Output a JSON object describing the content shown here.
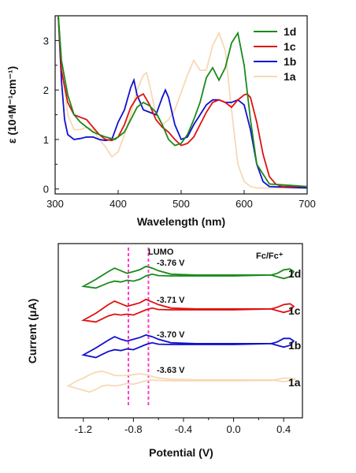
{
  "colors": {
    "1a": "#f7d9b4",
    "1b": "#1010d0",
    "1c": "#e01010",
    "1d": "#1a8a1a",
    "marker": "#ff3cc8"
  },
  "chart_data": [
    {
      "type": "line",
      "xlabel": "Wavelength (nm)",
      "ylabel": "ε (10⁴M⁻¹cm⁻¹)",
      "xlim": [
        300,
        700
      ],
      "ylim": [
        -0.1,
        3.5
      ],
      "xticks": [
        "300",
        "400",
        "500",
        "600",
        "700"
      ],
      "yticks": [
        "0",
        "1",
        "2",
        "3"
      ],
      "legend_position": "top-right",
      "series": [
        {
          "name": "1d",
          "color_key": "1d",
          "x": [
            305,
            310,
            320,
            330,
            340,
            360,
            380,
            395,
            410,
            420,
            430,
            440,
            450,
            460,
            470,
            480,
            490,
            500,
            510,
            520,
            530,
            540,
            550,
            560,
            570,
            580,
            590,
            600,
            610,
            620,
            640,
            700
          ],
          "values": [
            3.5,
            2.6,
            1.9,
            1.5,
            1.35,
            1.15,
            1.05,
            1.0,
            1.15,
            1.4,
            1.65,
            1.75,
            1.68,
            1.55,
            1.3,
            1.0,
            0.88,
            0.92,
            1.1,
            1.4,
            1.75,
            2.25,
            2.45,
            2.2,
            2.45,
            2.95,
            3.15,
            2.5,
            1.4,
            0.5,
            0.1,
            0.05
          ]
        },
        {
          "name": "1c",
          "color_key": "1c",
          "x": [
            305,
            310,
            320,
            330,
            340,
            350,
            360,
            370,
            380,
            390,
            400,
            410,
            420,
            430,
            440,
            450,
            460,
            470,
            480,
            490,
            500,
            510,
            520,
            530,
            540,
            550,
            560,
            570,
            580,
            590,
            600,
            605,
            610,
            620,
            630,
            640,
            650,
            660,
            700
          ],
          "values": [
            3.5,
            2.4,
            1.75,
            1.5,
            1.45,
            1.4,
            1.25,
            1.1,
            1.0,
            0.98,
            1.05,
            1.3,
            1.65,
            1.85,
            1.92,
            1.7,
            1.4,
            1.25,
            1.15,
            1.0,
            0.88,
            0.92,
            1.05,
            1.3,
            1.55,
            1.75,
            1.8,
            1.75,
            1.65,
            1.8,
            1.9,
            1.92,
            1.85,
            1.35,
            0.7,
            0.25,
            0.1,
            0.05,
            0.05
          ]
        },
        {
          "name": "1b",
          "color_key": "1b",
          "x": [
            305,
            310,
            315,
            320,
            330,
            340,
            350,
            360,
            370,
            380,
            390,
            400,
            410,
            420,
            425,
            430,
            440,
            450,
            460,
            470,
            475,
            480,
            490,
            500,
            510,
            520,
            530,
            540,
            550,
            560,
            570,
            580,
            590,
            600,
            610,
            620,
            630,
            640,
            700
          ],
          "values": [
            3.5,
            2.2,
            1.4,
            1.1,
            1.0,
            1.02,
            1.05,
            1.05,
            1.0,
            0.98,
            1.0,
            1.35,
            1.6,
            2.05,
            2.2,
            1.9,
            1.6,
            1.55,
            1.5,
            1.85,
            2.0,
            1.85,
            1.3,
            1.0,
            1.05,
            1.3,
            1.5,
            1.7,
            1.8,
            1.8,
            1.75,
            1.75,
            1.8,
            1.7,
            1.2,
            0.5,
            0.15,
            0.05,
            0.02
          ]
        },
        {
          "name": "1a",
          "color_key": "1a",
          "x": [
            305,
            310,
            320,
            330,
            340,
            350,
            360,
            370,
            380,
            390,
            400,
            410,
            420,
            430,
            440,
            445,
            450,
            460,
            470,
            480,
            490,
            500,
            510,
            520,
            530,
            540,
            550,
            560,
            570,
            580,
            590,
            600,
            610,
            620,
            630,
            700
          ],
          "values": [
            3.5,
            2.5,
            1.5,
            1.2,
            1.2,
            1.25,
            1.2,
            1.0,
            0.85,
            0.65,
            0.75,
            1.1,
            1.5,
            2.0,
            2.3,
            2.35,
            2.1,
            1.5,
            1.3,
            1.4,
            1.6,
            1.95,
            2.3,
            2.6,
            2.4,
            2.4,
            2.9,
            3.15,
            2.8,
            1.6,
            0.5,
            0.15,
            0.05,
            0.02,
            0.02,
            0.02
          ]
        }
      ]
    },
    {
      "type": "line",
      "xlabel": "Potential (V)",
      "ylabel": "Current (μA)",
      "xlim": [
        -1.4,
        0.55
      ],
      "xticks": [
        "-1.2",
        "-0.8",
        "-0.4",
        "0.0",
        "0.4"
      ],
      "markers": [
        -0.84,
        -0.68
      ],
      "annotations": [
        "LUMO",
        "-3.76 V",
        "-3.71 V",
        "-3.70 V",
        "-3.63 V",
        "Fc/Fc+"
      ],
      "series": [
        {
          "name": "1d",
          "color_key": "1d",
          "baseline": 0,
          "x": [
            -1.2,
            -1.1,
            -1.0,
            -0.95,
            -0.9,
            -0.85,
            -0.8,
            -0.75,
            -0.7,
            -0.65,
            -0.6,
            -0.5,
            -0.3,
            0,
            0.3,
            0.35,
            0.4,
            0.45,
            0.48
          ],
          "forward": [
            -0.6,
            -0.7,
            -0.4,
            -0.3,
            -0.35,
            -0.25,
            -0.3,
            -0.2,
            0,
            0.1,
            0.02,
            0,
            0,
            0,
            0.05,
            0.15,
            0.35,
            0.4,
            0.25
          ],
          "reverse": [
            -0.6,
            -0.2,
            0.25,
            0.45,
            0.3,
            0.15,
            0.25,
            0.35,
            0.55,
            0.45,
            0.3,
            0.1,
            0.05,
            0.05,
            0.05,
            -0.05,
            -0.15,
            -0.05,
            0.25
          ]
        },
        {
          "name": "1c",
          "color_key": "1c",
          "baseline": 0,
          "x": [
            -1.2,
            -1.1,
            -1.0,
            -0.95,
            -0.9,
            -0.85,
            -0.8,
            -0.75,
            -0.7,
            -0.65,
            -0.6,
            -0.5,
            -0.3,
            0,
            0.3,
            0.35,
            0.4,
            0.45,
            0.48
          ],
          "forward": [
            -0.6,
            -0.7,
            -0.35,
            -0.25,
            -0.3,
            -0.25,
            -0.3,
            -0.15,
            0,
            0.1,
            0.02,
            0,
            0,
            0,
            0.05,
            0.15,
            0.3,
            0.35,
            0.2
          ],
          "reverse": [
            -0.6,
            -0.2,
            0.3,
            0.5,
            0.35,
            0.2,
            0.3,
            0.4,
            0.6,
            0.45,
            0.3,
            0.1,
            0.05,
            0.05,
            0.05,
            -0.05,
            -0.15,
            -0.05,
            0.2
          ]
        },
        {
          "name": "1b",
          "color_key": "1b",
          "baseline": 0,
          "x": [
            -1.2,
            -1.1,
            -1.0,
            -0.95,
            -0.9,
            -0.85,
            -0.8,
            -0.75,
            -0.7,
            -0.65,
            -0.6,
            -0.5,
            -0.3,
            0,
            0.3,
            0.35,
            0.4,
            0.45,
            0.48
          ],
          "forward": [
            -0.6,
            -0.75,
            -0.4,
            -0.3,
            -0.35,
            -0.25,
            -0.3,
            -0.15,
            0,
            0.1,
            0.02,
            0,
            0,
            0,
            0.05,
            0.15,
            0.35,
            0.35,
            0.2
          ],
          "reverse": [
            -0.6,
            -0.2,
            0.25,
            0.45,
            0.3,
            0.2,
            0.3,
            0.4,
            0.55,
            0.45,
            0.3,
            0.1,
            0.05,
            0.05,
            0.05,
            -0.05,
            -0.15,
            -0.05,
            0.2
          ]
        },
        {
          "name": "1a",
          "color_key": "1a",
          "baseline": 0,
          "x": [
            -1.32,
            -1.25,
            -1.2,
            -1.15,
            -1.1,
            -1.05,
            -1.0,
            -0.95,
            -0.9,
            -0.85,
            -0.8,
            -0.75,
            -0.7,
            -0.65,
            -0.6,
            -0.5,
            -0.3,
            0,
            0.3,
            0.35,
            0.4,
            0.45,
            0.5
          ],
          "forward": [
            -0.3,
            -0.45,
            -0.55,
            -0.65,
            -0.5,
            -0.3,
            -0.25,
            -0.3,
            -0.25,
            -0.15,
            -0.2,
            -0.1,
            0,
            0.05,
            0.02,
            0,
            0,
            0,
            0.02,
            0.08,
            0.15,
            0.15,
            0.1
          ],
          "reverse": [
            -0.3,
            0.0,
            0.15,
            0.35,
            0.5,
            0.55,
            0.45,
            0.3,
            0.3,
            0.3,
            0.35,
            0.4,
            0.35,
            0.25,
            0.15,
            0.08,
            0.05,
            0.05,
            0.05,
            0.0,
            -0.05,
            0.0,
            0.1
          ]
        }
      ]
    }
  ],
  "labels": {
    "top_xlabel": "Wavelength (nm)",
    "top_ylabel": "ε (10⁴M⁻¹cm⁻¹)",
    "bottom_xlabel": "Potential (V)",
    "bottom_ylabel": "Current (μA)",
    "lumo": "LUMO",
    "fc": "Fc/Fc⁺",
    "v1d": "-3.76 V",
    "v1c": "-3.71 V",
    "v1b": "-3.70 V",
    "v1a": "-3.63 V",
    "n1d": "1d",
    "n1c": "1c",
    "n1b": "1b",
    "n1a": "1a"
  }
}
